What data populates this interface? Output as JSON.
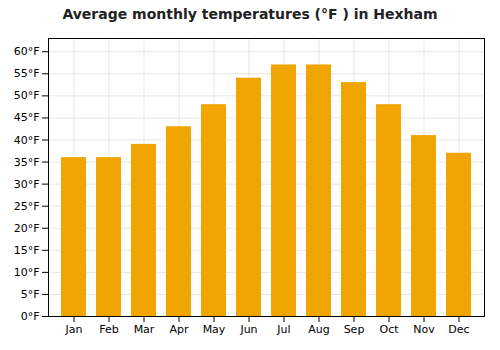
{
  "chart_data": {
    "type": "bar",
    "title": "Average monthly temperatures (°F ) in Hexham",
    "categories": [
      "Jan",
      "Feb",
      "Mar",
      "Apr",
      "May",
      "Jun",
      "Jul",
      "Aug",
      "Sep",
      "Oct",
      "Nov",
      "Dec"
    ],
    "values": [
      36,
      36,
      39,
      43,
      48,
      54,
      57,
      57,
      53,
      48,
      41,
      37
    ],
    "color": "#F0A500",
    "ylim": [
      0,
      63
    ],
    "yticks": [
      {
        "value": 0,
        "label": "0°F"
      },
      {
        "value": 5,
        "label": "5°F"
      },
      {
        "value": 10,
        "label": "10°F"
      },
      {
        "value": 15,
        "label": "15°F"
      },
      {
        "value": 20,
        "label": "20°F"
      },
      {
        "value": 25,
        "label": "25°F"
      },
      {
        "value": 30,
        "label": "30°F"
      },
      {
        "value": 35,
        "label": "35°F"
      },
      {
        "value": 40,
        "label": "40°F"
      },
      {
        "value": 45,
        "label": "45°F"
      },
      {
        "value": 50,
        "label": "50°F"
      },
      {
        "value": 55,
        "label": "55°F"
      },
      {
        "value": 60,
        "label": "60°F"
      }
    ],
    "grid": true
  }
}
